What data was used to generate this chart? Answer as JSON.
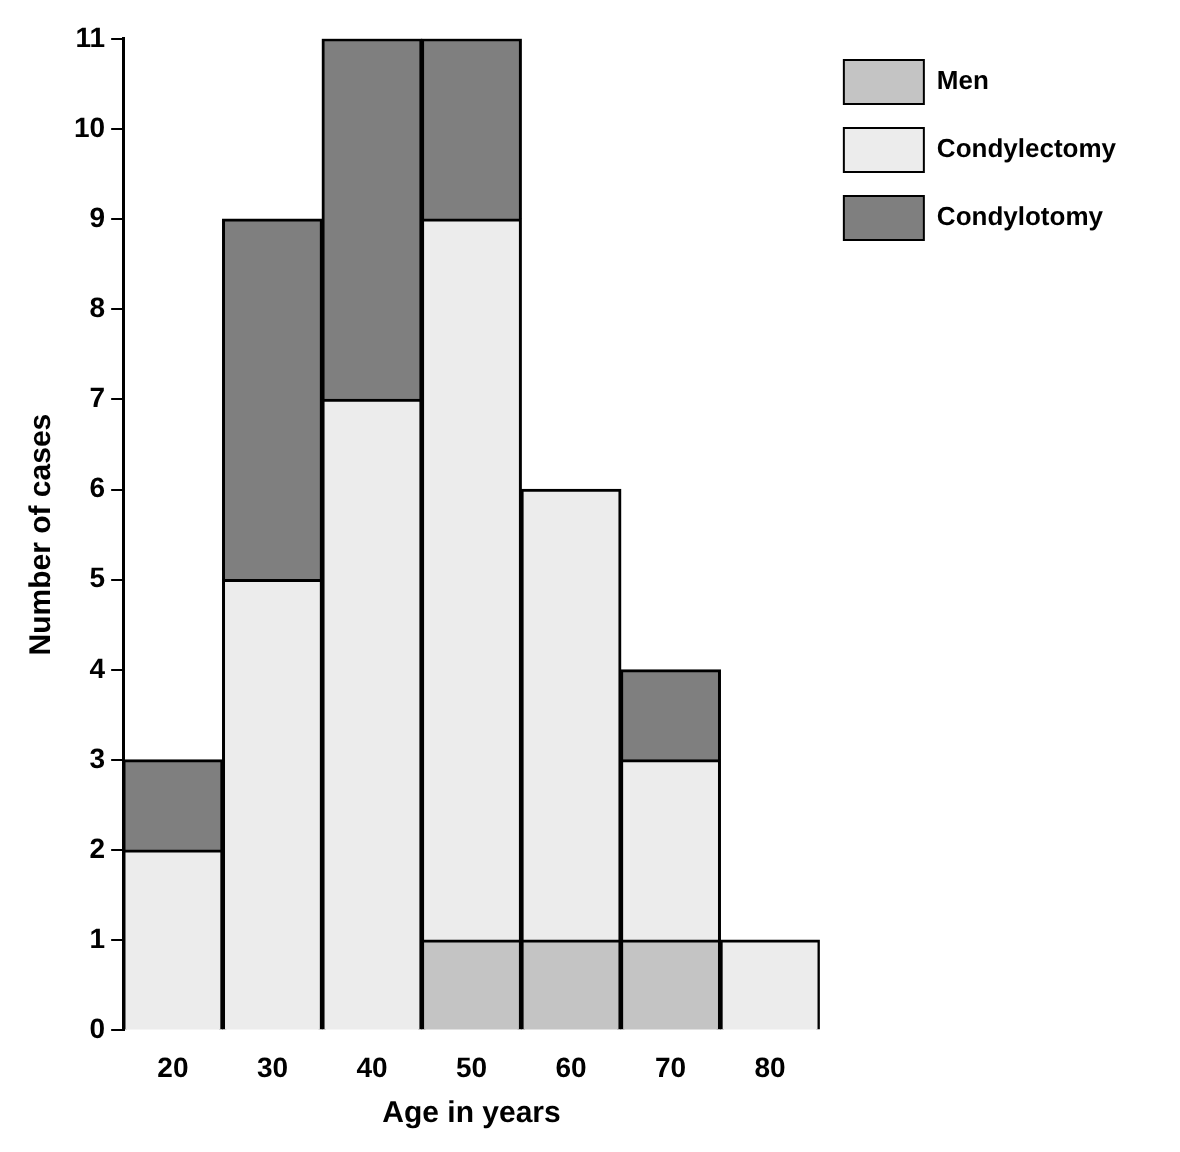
{
  "chart_data": {
    "type": "bar",
    "xlabel": "Age in years",
    "ylabel": "Number of cases",
    "categories": [
      "20",
      "30",
      "40",
      "50",
      "60",
      "70",
      "80"
    ],
    "stacked": true,
    "series": [
      {
        "name": "Men",
        "color": "#c4c4c4",
        "values": [
          0,
          0,
          0,
          1,
          1,
          1,
          0
        ]
      },
      {
        "name": "Condylectomy",
        "color": "#ececec",
        "values": [
          2,
          5,
          7,
          8,
          5,
          2,
          1
        ]
      },
      {
        "name": "Condylotomy",
        "color": "#7f7f7f",
        "values": [
          1,
          4,
          4,
          2,
          0,
          1,
          0
        ]
      }
    ],
    "ylim": [
      0,
      11
    ],
    "yticks": [
      0,
      1,
      2,
      3,
      4,
      5,
      6,
      7,
      8,
      9,
      10,
      11
    ],
    "grid": false,
    "legend": "top right"
  }
}
